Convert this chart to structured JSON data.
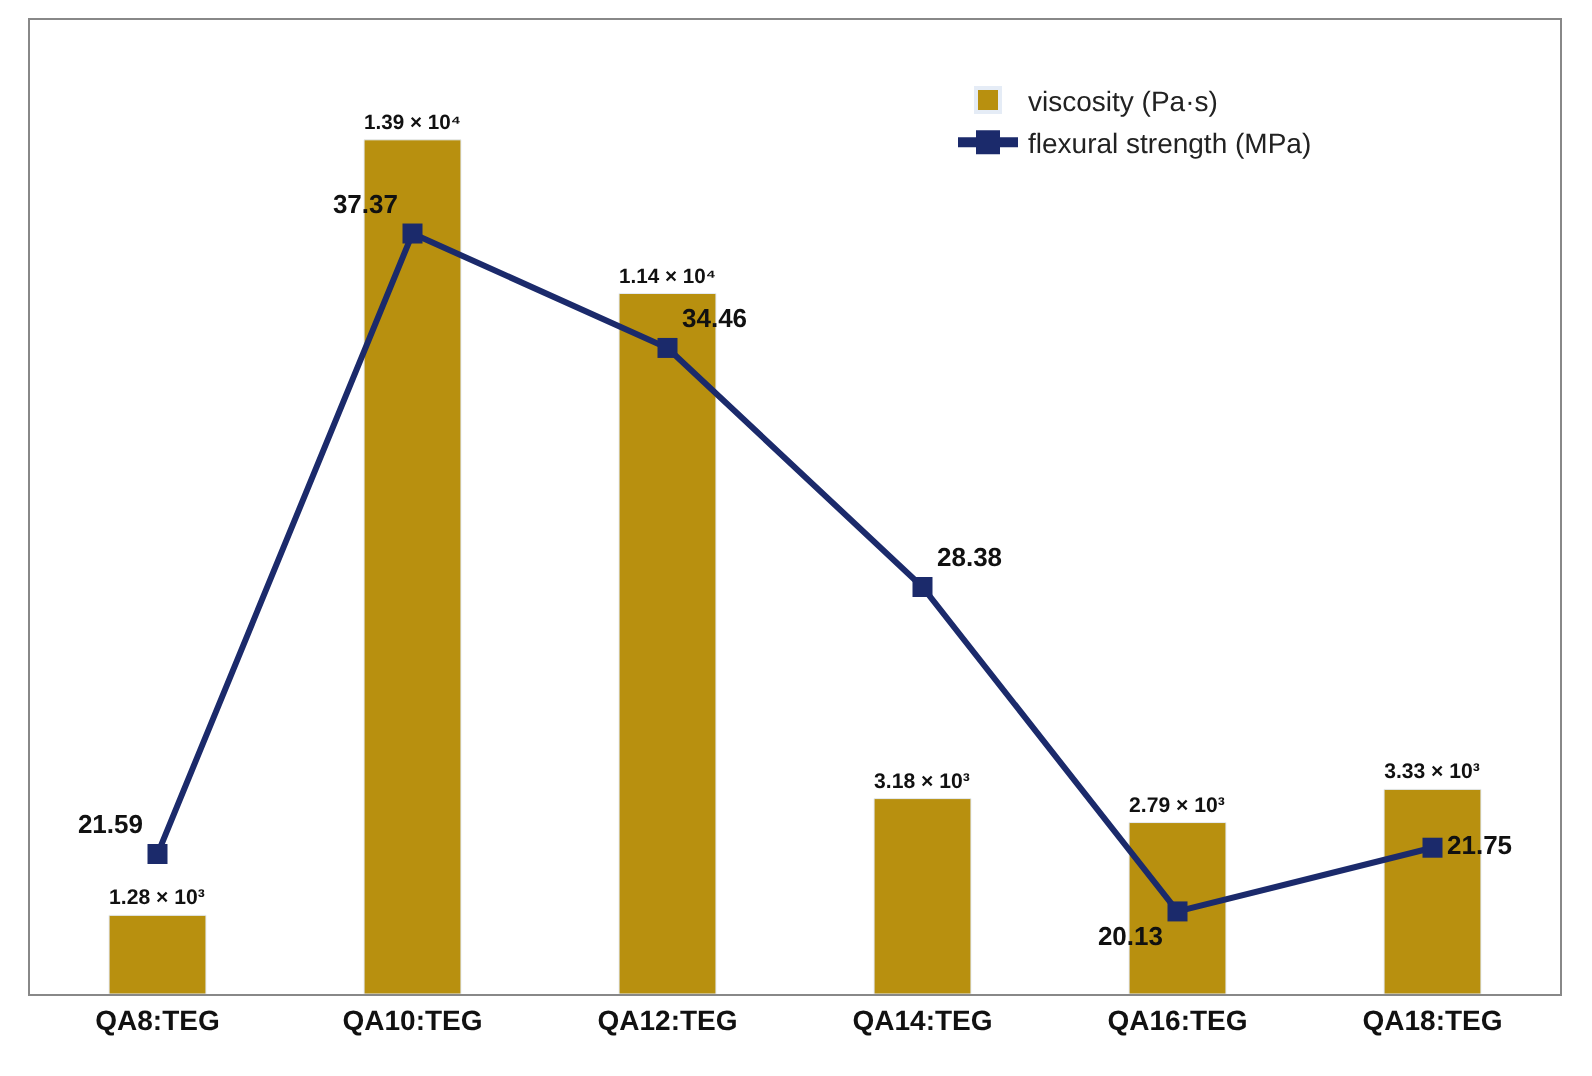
{
  "chart_data": {
    "type": "bar",
    "categories": [
      "QA8:TEG",
      "QA10:TEG",
      "QA12:TEG",
      "QA14:TEG",
      "QA16:TEG",
      "QA18:TEG"
    ],
    "series": [
      {
        "name": "viscosity (Pa·s)",
        "color": "#b8900f",
        "values": [
          1280,
          13900,
          11400,
          3180,
          2790,
          3330
        ],
        "value_labels": [
          "1.28 × 10³",
          "1.39 × 10⁴",
          "1.14 × 10⁴",
          "3.18 × 10³",
          "2.79 × 10³",
          "3.33 × 10³"
        ]
      },
      {
        "name": "flexural strength (MPa)",
        "type": "line",
        "axis": "y2",
        "color": "#1b2a6b",
        "values": [
          21.59,
          37.37,
          34.46,
          28.38,
          20.13,
          21.75
        ],
        "value_labels": [
          "21.59",
          "37.37",
          "34.46",
          "28.38",
          "20.13",
          "21.75"
        ]
      }
    ],
    "ylim": [
      0,
      15850
    ],
    "y2lim": [
      18.03,
      42.8
    ],
    "tick_labels": "x",
    "legend": "top right",
    "marker": "square",
    "line_style": "solid"
  }
}
